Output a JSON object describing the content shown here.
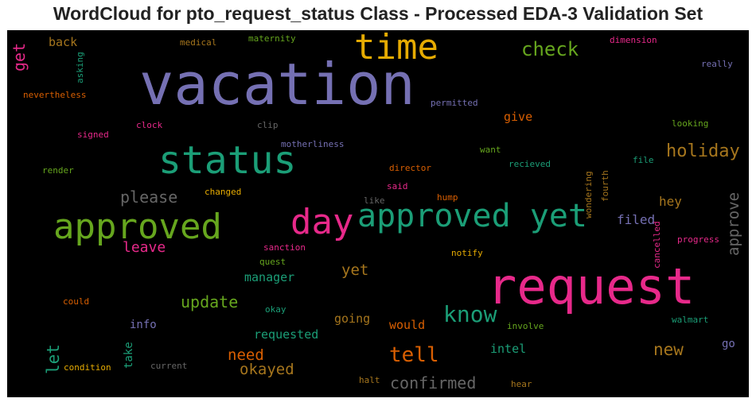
{
  "chart_data": {
    "type": "wordcloud",
    "title": "WordCloud for pto_request_status Class - Processed EDA-3 Validation Set",
    "background": "#000000",
    "words": [
      {
        "text": "vacation",
        "color": "#7570b3"
      },
      {
        "text": "request",
        "color": "#e7298a"
      },
      {
        "text": "status",
        "color": "#1b9e77"
      },
      {
        "text": "approved yet",
        "color": "#1b9e77"
      },
      {
        "text": "approved",
        "color": "#66a61e"
      },
      {
        "text": "time",
        "color": "#e6ab02"
      },
      {
        "text": "day",
        "color": "#e7298a"
      },
      {
        "text": "know",
        "color": "#1b9e77"
      },
      {
        "text": "check",
        "color": "#66a61e"
      },
      {
        "text": "holiday",
        "color": "#a6761d"
      },
      {
        "text": "tell",
        "color": "#d95f02"
      },
      {
        "text": "update",
        "color": "#66a61e"
      },
      {
        "text": "confirmed",
        "color": "#666666"
      },
      {
        "text": "okayed",
        "color": "#a6761d"
      },
      {
        "text": "new",
        "color": "#a6761d"
      },
      {
        "text": "need",
        "color": "#d95f02"
      },
      {
        "text": "please",
        "color": "#666666"
      },
      {
        "text": "approve",
        "color": "#666666"
      },
      {
        "text": "leave",
        "color": "#e7298a"
      },
      {
        "text": "yet",
        "color": "#a6761d"
      },
      {
        "text": "get",
        "color": "#e7298a"
      },
      {
        "text": "let",
        "color": "#1b9e77"
      },
      {
        "text": "filed",
        "color": "#7570b3"
      },
      {
        "text": "hey",
        "color": "#a6761d"
      },
      {
        "text": "manager",
        "color": "#1b9e77"
      },
      {
        "text": "requested",
        "color": "#1b9e77"
      },
      {
        "text": "would",
        "color": "#d95f02"
      },
      {
        "text": "going",
        "color": "#a6761d"
      },
      {
        "text": "intel",
        "color": "#1b9e77"
      },
      {
        "text": "give",
        "color": "#d95f02"
      },
      {
        "text": "back",
        "color": "#a6761d"
      },
      {
        "text": "info",
        "color": "#7570b3"
      },
      {
        "text": "take",
        "color": "#1b9e77"
      },
      {
        "text": "go",
        "color": "#7570b3"
      },
      {
        "text": "medical",
        "color": "#a6761d"
      },
      {
        "text": "maternity",
        "color": "#66a61e"
      },
      {
        "text": "dimension",
        "color": "#e7298a"
      },
      {
        "text": "really",
        "color": "#7570b3"
      },
      {
        "text": "asking",
        "color": "#1b9e77"
      },
      {
        "text": "nevertheless",
        "color": "#d95f02"
      },
      {
        "text": "permitted",
        "color": "#7570b3"
      },
      {
        "text": "clock",
        "color": "#e7298a"
      },
      {
        "text": "clip",
        "color": "#666666"
      },
      {
        "text": "looking",
        "color": "#66a61e"
      },
      {
        "text": "signed",
        "color": "#e7298a"
      },
      {
        "text": "motherliness",
        "color": "#7570b3"
      },
      {
        "text": "want",
        "color": "#66a61e"
      },
      {
        "text": "file",
        "color": "#1b9e77"
      },
      {
        "text": "render",
        "color": "#66a61e"
      },
      {
        "text": "director",
        "color": "#d95f02"
      },
      {
        "text": "recieved",
        "color": "#1b9e77"
      },
      {
        "text": "changed",
        "color": "#e6ab02"
      },
      {
        "text": "said",
        "color": "#e7298a"
      },
      {
        "text": "like",
        "color": "#666666"
      },
      {
        "text": "hump",
        "color": "#d95f02"
      },
      {
        "text": "wondering",
        "color": "#a6761d"
      },
      {
        "text": "fourth",
        "color": "#a6761d"
      },
      {
        "text": "sanction",
        "color": "#e7298a"
      },
      {
        "text": "progress",
        "color": "#e7298a"
      },
      {
        "text": "quest",
        "color": "#66a61e"
      },
      {
        "text": "notify",
        "color": "#e6ab02"
      },
      {
        "text": "cancelled",
        "color": "#e7298a"
      },
      {
        "text": "could",
        "color": "#d95f02"
      },
      {
        "text": "okay",
        "color": "#1b9e77"
      },
      {
        "text": "involve",
        "color": "#66a61e"
      },
      {
        "text": "walmart",
        "color": "#1b9e77"
      },
      {
        "text": "condition",
        "color": "#e6ab02"
      },
      {
        "text": "current",
        "color": "#666666"
      },
      {
        "text": "halt",
        "color": "#a6761d"
      },
      {
        "text": "hear",
        "color": "#a6761d"
      }
    ]
  }
}
